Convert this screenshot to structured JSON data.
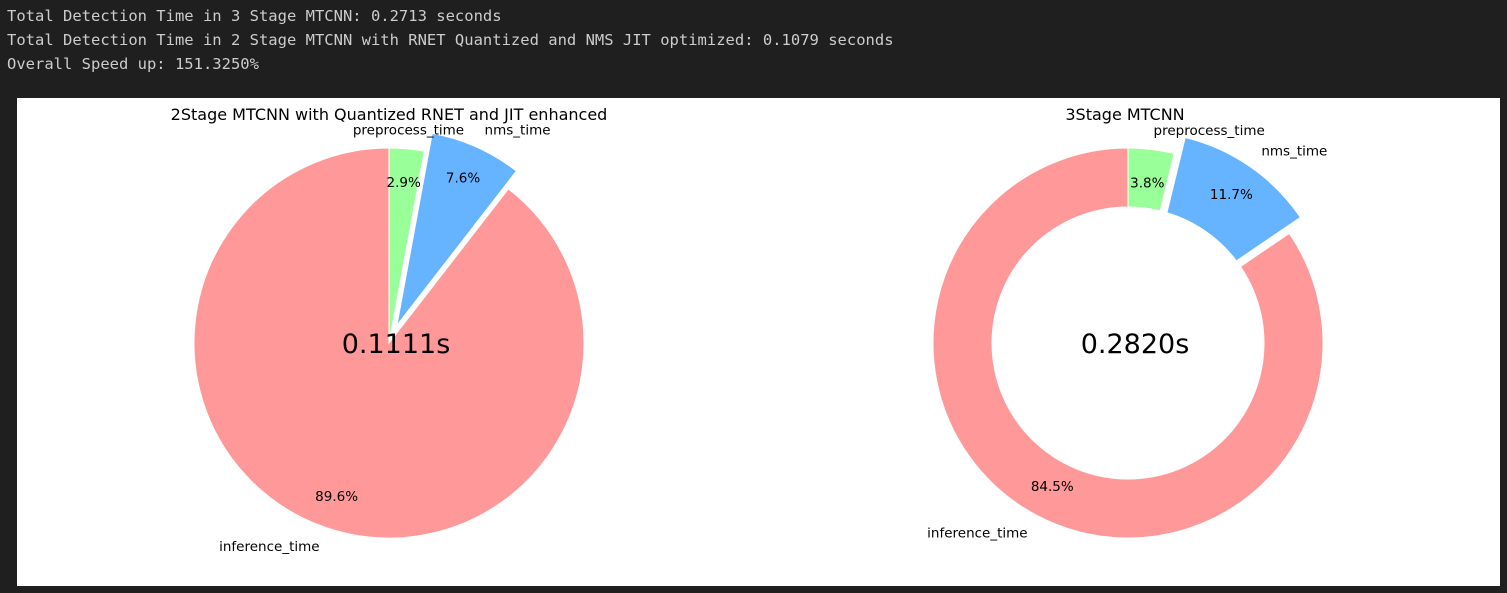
{
  "console": {
    "lines": [
      "Total Detection Time in 3 Stage MTCNN: 0.2713 seconds",
      "Total Detection Time in 2 Stage MTCNN with RNET Quantized and NMS JIT optimized: 0.1079 seconds",
      "Overall Speed up: 151.3250%"
    ]
  },
  "chart_data": [
    {
      "type": "pie",
      "title": "2Stage MTCNN with Quantized RNET and JIT enhanced",
      "center_text": "0.1111s",
      "start_angle_deg": 90,
      "direction": "clockwise",
      "labels": [
        "preprocess_time",
        "nms_time",
        "inference_time"
      ],
      "values": [
        2.9,
        7.6,
        89.6
      ],
      "value_labels": [
        "2.9%",
        "7.6%",
        "89.6%"
      ],
      "explode": [
        0,
        0.1,
        0
      ],
      "colors": [
        "#99ff99",
        "#66b3ff",
        "#ff9999"
      ],
      "donut": false
    },
    {
      "type": "pie",
      "title": "3Stage MTCNN",
      "center_text": "0.2820s",
      "start_angle_deg": 90,
      "direction": "clockwise",
      "labels": [
        "preprocess_time",
        "nms_time",
        "inference_time"
      ],
      "values": [
        3.8,
        11.7,
        84.5
      ],
      "value_labels": [
        "3.8%",
        "11.7%",
        "84.5%"
      ],
      "explode": [
        0,
        0.1,
        0
      ],
      "colors": [
        "#99ff99",
        "#66b3ff",
        "#ff9999"
      ],
      "donut": true
    }
  ]
}
